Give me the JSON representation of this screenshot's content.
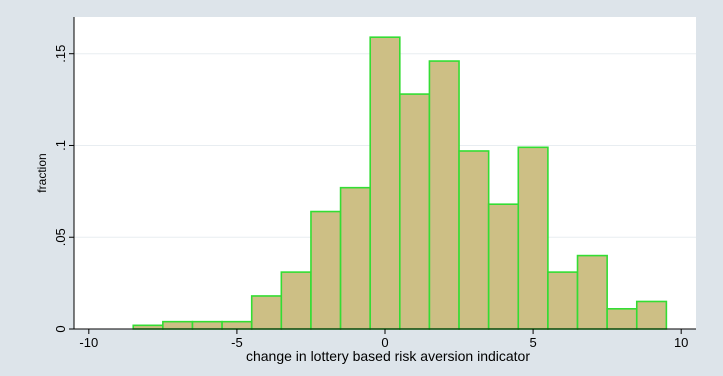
{
  "chart_data": {
    "type": "bar",
    "title": "",
    "xlabel": "change in lottery based risk aversion indicator",
    "ylabel": "fraction",
    "xlim": [
      -10.5,
      10.5
    ],
    "ylim": [
      0,
      0.17
    ],
    "x_ticks": [
      {
        "value": -10,
        "label": "-10"
      },
      {
        "value": -5,
        "label": "-5"
      },
      {
        "value": 0,
        "label": "0"
      },
      {
        "value": 5,
        "label": "5"
      },
      {
        "value": 10,
        "label": "10"
      }
    ],
    "y_ticks": [
      {
        "value": 0,
        "label": "0"
      },
      {
        "value": 0.05,
        "label": ".05"
      },
      {
        "value": 0.1,
        "label": ".1"
      },
      {
        "value": 0.15,
        "label": ".15"
      }
    ],
    "grid": true,
    "bin_width": 1,
    "bins": [
      {
        "start": -8.5,
        "value": 0.002
      },
      {
        "start": -7.5,
        "value": 0.004
      },
      {
        "start": -6.5,
        "value": 0.004
      },
      {
        "start": -5.5,
        "value": 0.004
      },
      {
        "start": -4.5,
        "value": 0.018
      },
      {
        "start": -3.5,
        "value": 0.031
      },
      {
        "start": -2.5,
        "value": 0.064
      },
      {
        "start": -1.5,
        "value": 0.077
      },
      {
        "start": -0.5,
        "value": 0.159
      },
      {
        "start": 0.5,
        "value": 0.128
      },
      {
        "start": 1.5,
        "value": 0.146
      },
      {
        "start": 2.5,
        "value": 0.097
      },
      {
        "start": 3.5,
        "value": 0.068
      },
      {
        "start": 4.5,
        "value": 0.099
      },
      {
        "start": 5.5,
        "value": 0.031
      },
      {
        "start": 6.5,
        "value": 0.04
      },
      {
        "start": 7.5,
        "value": 0.011
      },
      {
        "start": 8.5,
        "value": 0.015
      }
    ],
    "colors": {
      "background": "#dde4ea",
      "plot_region": "#ffffff",
      "bar_fill": "#cdbf85",
      "bar_edge": "#33dd33",
      "grid": "#e8edf1",
      "axis": "#000000"
    }
  }
}
